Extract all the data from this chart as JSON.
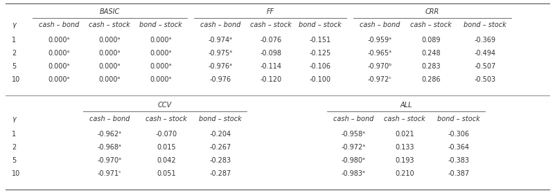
{
  "background": "#ffffff",
  "gamma_vals": [
    "1",
    "2",
    "5",
    "10"
  ],
  "data_top": [
    [
      "0.000ᵃ",
      "0.000ᵃ",
      "0.000ᵃ",
      "-0.974ᵃ",
      "-0.076",
      "-0.151",
      "-0.959ᵃ",
      "0.089",
      "-0.369"
    ],
    [
      "0.000ᵃ",
      "0.000ᵃ",
      "0.000ᵃ",
      "-0.975ᵃ",
      "-0.098",
      "-0.125",
      "-0.965ᵃ",
      "0.248",
      "-0.494"
    ],
    [
      "0.000ᵃ",
      "0.000ᵃ",
      "0.000ᵃ",
      "-0.976ᵃ",
      "-0.114",
      "-0.106",
      "-0.970ᵇ",
      "0.283",
      "-0.507"
    ],
    [
      "0.000ᵃ",
      "0.000ᵃ",
      "0.000ᵃ",
      "-0.976",
      "-0.120",
      "-0.100",
      "-0.972ᶜ",
      "0.286",
      "-0.503"
    ]
  ],
  "data_bot": [
    [
      "-0.962ᵃ",
      "-0.070",
      "-0.204",
      "-0.958ᵃ",
      "0.021",
      "-0.306"
    ],
    [
      "-0.968ᵃ",
      "0.015",
      "-0.267",
      "-0.972ᵃ",
      "0.133",
      "-0.364"
    ],
    [
      "-0.970ᵃ",
      "0.042",
      "-0.283",
      "-0.980ᵃ",
      "0.193",
      "-0.383"
    ],
    [
      "-0.971ᶜ",
      "0.051",
      "-0.287",
      "-0.983ᵃ",
      "0.210",
      "-0.387"
    ]
  ],
  "sec1_labels": [
    "BASIC",
    "FF",
    "CRR"
  ],
  "sec2_labels": [
    "CCV",
    "ALL"
  ],
  "col_hdr1": [
    "γ",
    "cash – bond",
    "cash – stock",
    "bond – stock",
    "cash – bond",
    "cash – stock",
    "bond – stock",
    "cash – bond",
    "cash – stock",
    "bond – stock"
  ],
  "col_hdr2_gamma": "γ",
  "col_hdr2_ccv": [
    "cash – bond",
    "cash – stock",
    "bond – stock"
  ],
  "col_hdr2_all": [
    "cash – bond",
    "cash – stock",
    "bond – stock"
  ],
  "fs": 7.0,
  "fs_hdr": 7.0
}
